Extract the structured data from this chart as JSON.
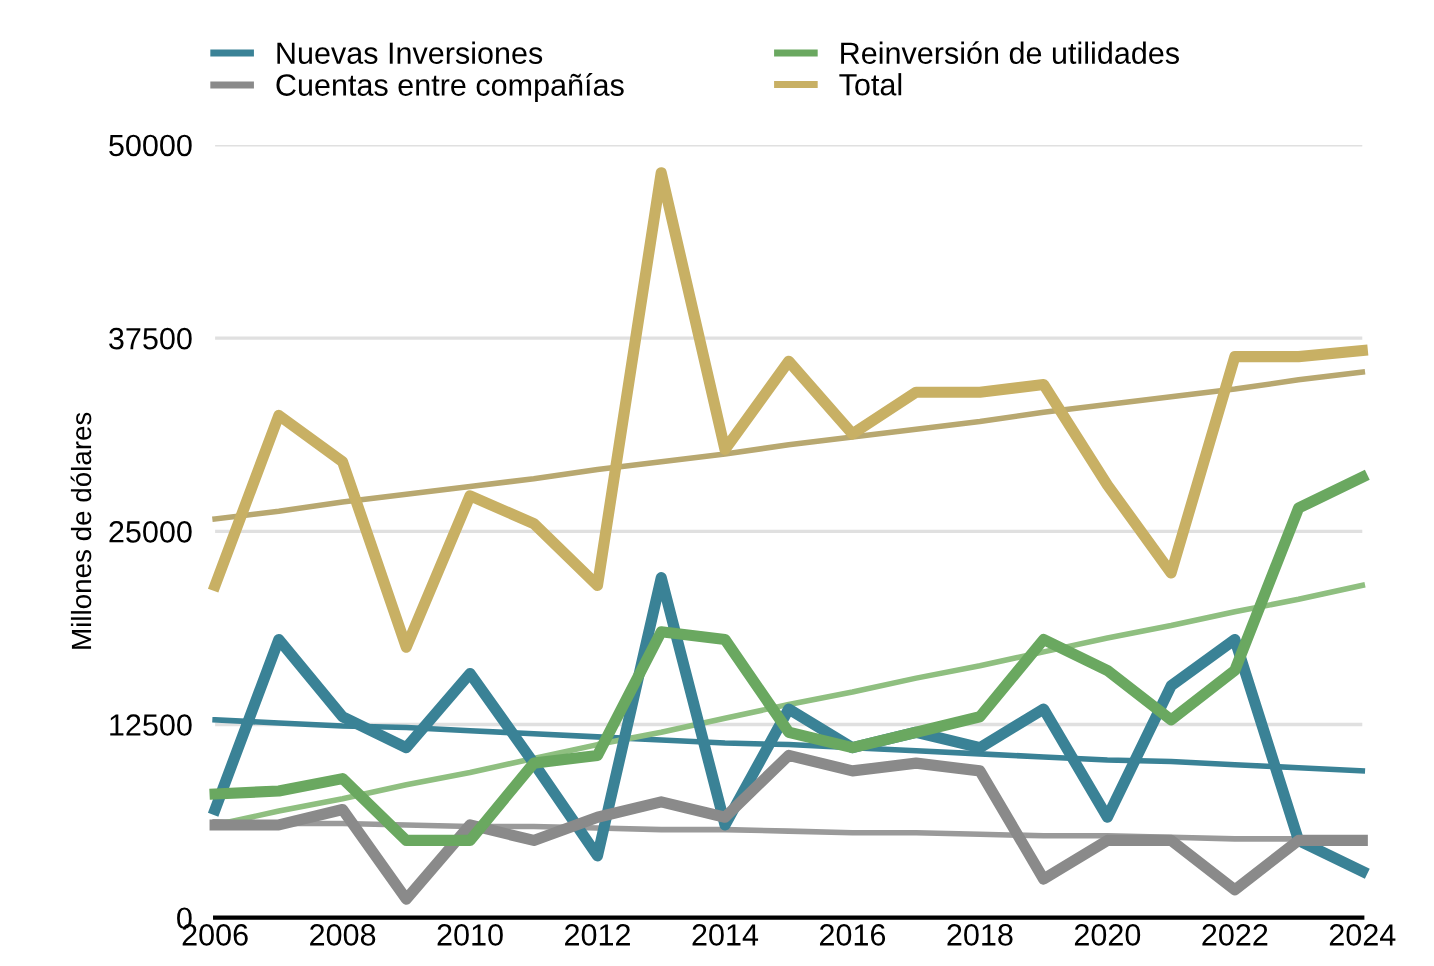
{
  "chart_data": {
    "type": "line",
    "ylabel": "Millones de dólares",
    "x": [
      2006,
      2007,
      2008,
      2009,
      2010,
      2011,
      2012,
      2013,
      2014,
      2015,
      2016,
      2017,
      2018,
      2019,
      2020,
      2021,
      2022,
      2023,
      2024
    ],
    "series": [
      {
        "name": "Nuevas Inversiones",
        "color": "#3a8296",
        "values": [
          7000,
          18000,
          13000,
          11000,
          15800,
          10000,
          4000,
          22000,
          6000,
          13500,
          11000,
          12000,
          11000,
          13500,
          6500,
          15000,
          18000,
          5000,
          3000
        ]
      },
      {
        "name": "Cuentas entre compañías",
        "color": "#8a8a8a",
        "values": [
          6000,
          6000,
          7000,
          1200,
          6000,
          5000,
          6500,
          7500,
          6500,
          10500,
          9500,
          10000,
          9500,
          2500,
          5000,
          5000,
          1800,
          5000,
          5000
        ]
      },
      {
        "name": "Reinversión de utilidades",
        "color": "#6aa860",
        "values": [
          8000,
          8200,
          9000,
          5000,
          5000,
          10000,
          10500,
          18500,
          18000,
          12000,
          11000,
          12000,
          13000,
          18000,
          16000,
          12800,
          16000,
          26500,
          28500
        ]
      },
      {
        "name": "Total",
        "color": "#c8b064",
        "values": [
          21500,
          32500,
          29500,
          17500,
          27300,
          25500,
          21500,
          48200,
          30300,
          36000,
          31300,
          34000,
          34000,
          34500,
          28000,
          22300,
          36300,
          36300,
          36700
        ]
      },
      {
        "color": "#3a8296",
        "values": [
          12800,
          12600,
          12400,
          12300,
          12100,
          11900,
          11700,
          11500,
          11300,
          11200,
          11000,
          10800,
          10600,
          10400,
          10200,
          10100,
          9900,
          9700,
          9500
        ]
      },
      {
        "color": "#9a9a9a",
        "values": [
          6200,
          6100,
          6100,
          6000,
          5900,
          5900,
          5800,
          5700,
          5700,
          5600,
          5500,
          5500,
          5400,
          5300,
          5300,
          5200,
          5100,
          5100,
          5000
        ]
      },
      {
        "color": "#8fbf80",
        "values": [
          6000,
          6900,
          7700,
          8600,
          9400,
          10300,
          11200,
          12000,
          12900,
          13800,
          14600,
          15500,
          16300,
          17200,
          18100,
          18900,
          19800,
          20600,
          21500
        ]
      },
      {
        "color": "#b8a870",
        "values": [
          25800,
          26300,
          26900,
          27400,
          27900,
          28400,
          29000,
          29500,
          30000,
          30600,
          31100,
          31600,
          32100,
          32700,
          33200,
          33700,
          34200,
          34800,
          35300
        ]
      }
    ],
    "xlim": [
      2006,
      2024
    ],
    "xticks": [
      2006,
      2008,
      2010,
      2012,
      2014,
      2016,
      2018,
      2020,
      2022,
      2024
    ],
    "ylim": [
      0,
      50000
    ],
    "yticks": [
      0,
      12500,
      25000,
      37500,
      50000
    ],
    "grid": "y",
    "legend": "top",
    "marker": "none",
    "line_style": "solid"
  }
}
